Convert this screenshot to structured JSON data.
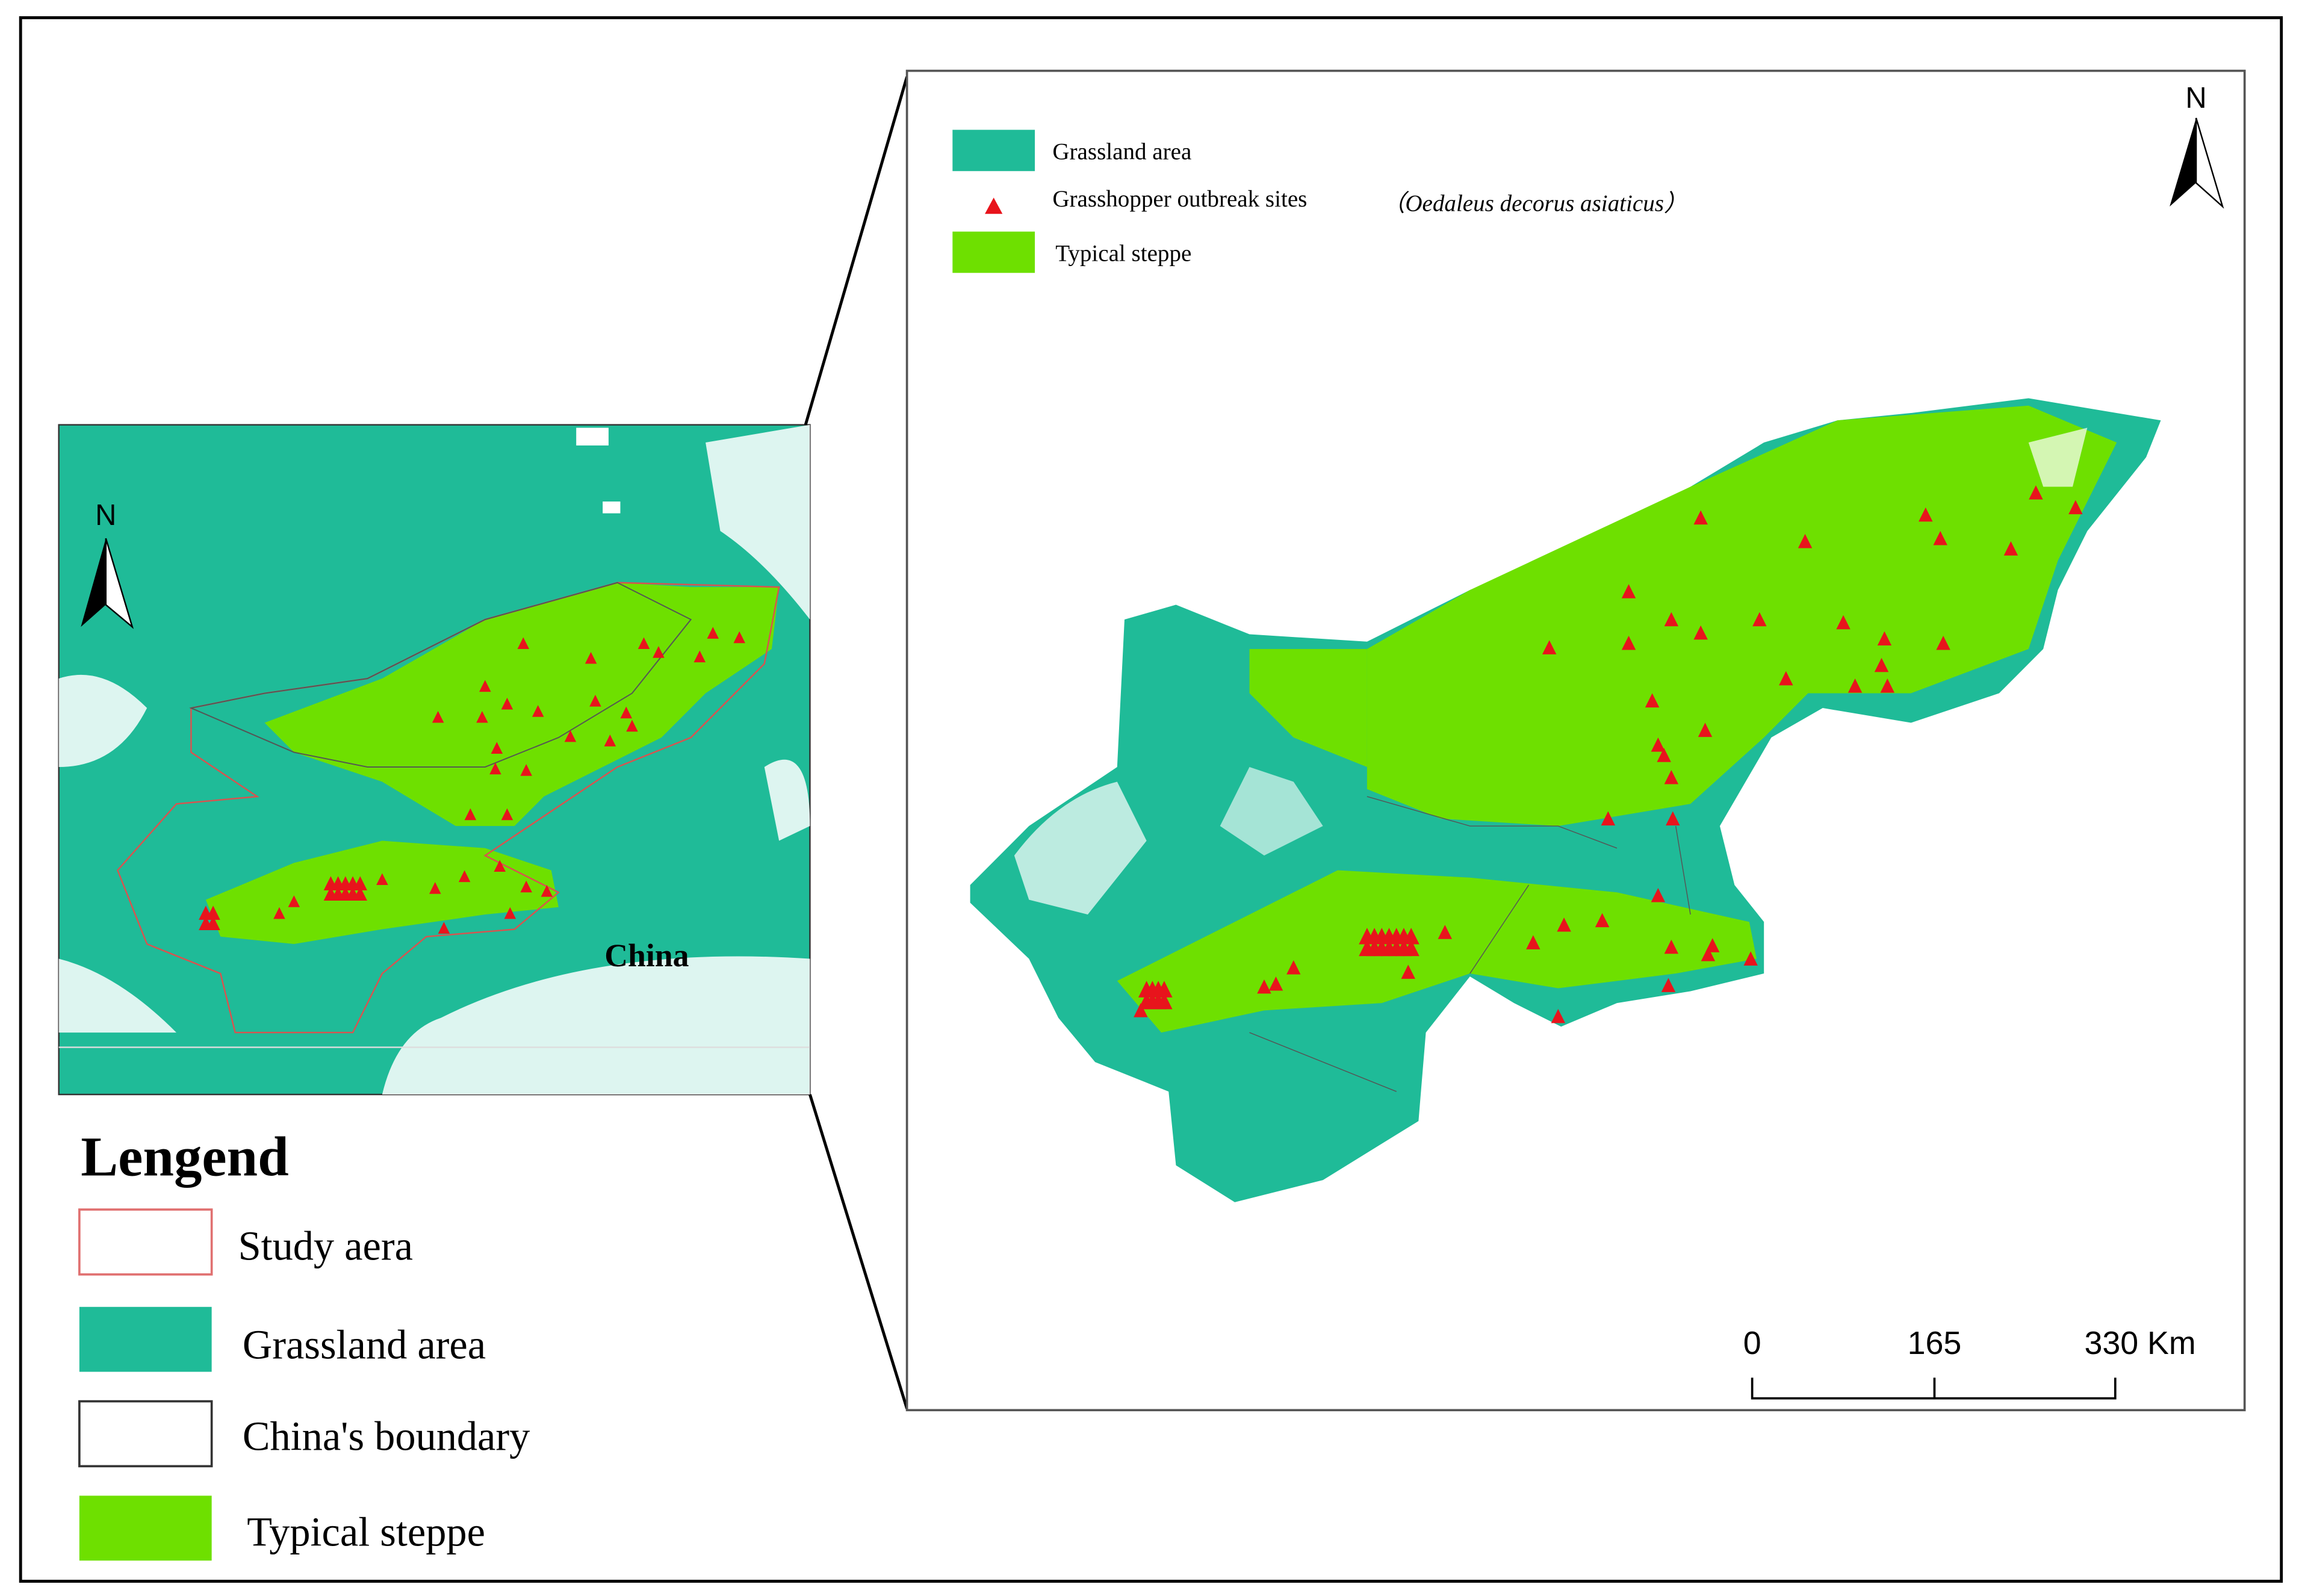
{
  "inset_map": {
    "north_label": "N",
    "country_label": "China"
  },
  "legend": {
    "title": "Lengend",
    "items": [
      "Study aera",
      "Grassland area",
      "China's boundary",
      "Typical steppe"
    ]
  },
  "main_map": {
    "legend": {
      "items": [
        "Grassland area",
        "Grasshopper outbreak sites",
        "Typical steppe"
      ],
      "species": "（Oedaleus decorus asiaticus）"
    },
    "north_label": "N",
    "scale_bar": {
      "labels": [
        "0",
        "165",
        "330 Km"
      ]
    }
  }
}
